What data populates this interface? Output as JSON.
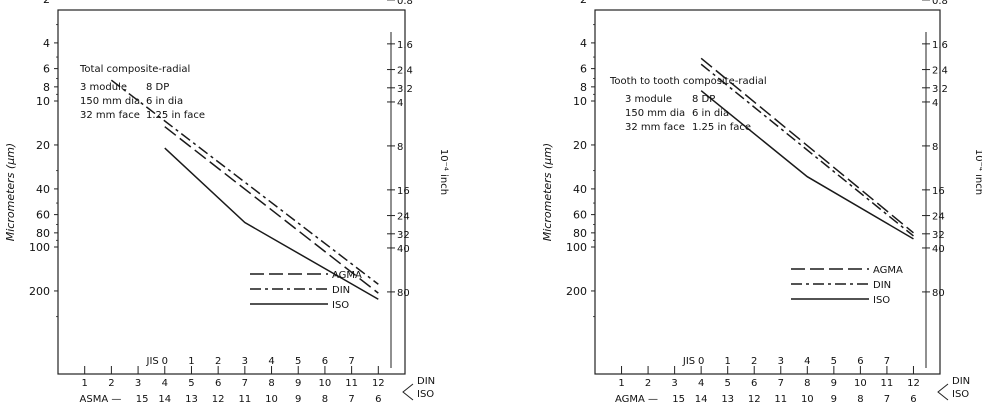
{
  "chart_data": [
    {
      "type": "line",
      "title": "Total composite-radial",
      "spec_lines": [
        {
          "metric": "3 module",
          "imperial": "8 DP"
        },
        {
          "metric": "150 mm dia",
          "imperial": "6 in dia"
        },
        {
          "metric": "32 mm face",
          "imperial": "1.25 in face"
        }
      ],
      "ylabel": "Micrometers (μm)",
      "y2label": "10⁻⁴ inch",
      "yscale": "log",
      "ylim": [
        1.55,
        300
      ],
      "yticks": [
        "2",
        "4",
        "6",
        "8",
        "10",
        "20",
        "40",
        "60",
        "80",
        "100",
        "200"
      ],
      "y2ticks": [
        "0.8",
        "1.6",
        "2.4",
        "3.2",
        "4",
        "8",
        "16",
        "24",
        "32",
        "40",
        "80"
      ],
      "x_rows": [
        {
          "name": "",
          "ticks": [
            "1",
            "2",
            "3",
            "4",
            "5",
            "6",
            "7",
            "8",
            "9",
            "10",
            "11",
            "12"
          ]
        },
        {
          "name": "JIS",
          "ticks": [
            "0",
            "1",
            "2",
            "3",
            "4",
            "5",
            "6",
            "7"
          ]
        },
        {
          "name": "ASMA —",
          "ticks": [
            "15",
            "14",
            "13",
            "12",
            "11",
            "10",
            "9",
            "8",
            "7",
            "6"
          ]
        }
      ],
      "x_row_labels_right": [
        "DIN",
        "ISO"
      ],
      "x": [
        1,
        2,
        3,
        4,
        5,
        6,
        7,
        8,
        9,
        10,
        11,
        12
      ],
      "series": [
        {
          "name": "AGMA",
          "style": "long-dash",
          "x": [
            4,
            12
          ],
          "y": [
            15,
            207
          ]
        },
        {
          "name": "DIN",
          "style": "dash-dot",
          "x": [
            2,
            12
          ],
          "y": [
            7.2,
            180
          ]
        },
        {
          "name": "ISO",
          "style": "solid",
          "x": [
            4,
            7,
            12
          ],
          "y": [
            21,
            68,
            228
          ]
        }
      ],
      "legend": [
        "AGMA",
        "DIN",
        "ISO"
      ]
    },
    {
      "type": "line",
      "title": "Tooth to tooth composite-radial",
      "spec_lines": [
        {
          "metric": "3 module",
          "imperial": "8 DP"
        },
        {
          "metric": "150 mm dia",
          "imperial": "6 in dia"
        },
        {
          "metric": "32 mm face",
          "imperial": "1.25 in face"
        }
      ],
      "ylabel": "Micrometers (μm)",
      "y2label": "10⁻⁴ inch",
      "yscale": "log",
      "ylim": [
        1.55,
        300
      ],
      "yticks": [
        "2",
        "4",
        "6",
        "8",
        "10",
        "20",
        "40",
        "60",
        "80",
        "100",
        "200"
      ],
      "y2ticks": [
        "0.8",
        "1.6",
        "2.4",
        "3.2",
        "4",
        "8",
        "16",
        "24",
        "32",
        "40",
        "80"
      ],
      "x_rows": [
        {
          "name": "",
          "ticks": [
            "1",
            "2",
            "3",
            "4",
            "5",
            "6",
            "7",
            "8",
            "9",
            "10",
            "11",
            "12"
          ]
        },
        {
          "name": "JIS",
          "ticks": [
            "0",
            "1",
            "2",
            "3",
            "4",
            "5",
            "6",
            "7"
          ]
        },
        {
          "name": "AGMA —",
          "ticks": [
            "15",
            "14",
            "13",
            "12",
            "11",
            "10",
            "9",
            "8",
            "7",
            "6"
          ]
        }
      ],
      "x_row_labels_right": [
        "DIN",
        "ISO"
      ],
      "x": [
        1,
        2,
        3,
        4,
        5,
        6,
        7,
        8,
        9,
        10,
        11,
        12
      ],
      "series": [
        {
          "name": "AGMA",
          "style": "long-dash",
          "x": [
            4,
            12
          ],
          "y": [
            5.1,
            80
          ]
        },
        {
          "name": "DIN",
          "style": "dash-dot",
          "x": [
            4,
            12
          ],
          "y": [
            5.6,
            84
          ]
        },
        {
          "name": "ISO",
          "style": "solid",
          "x": [
            4,
            8,
            12
          ],
          "y": [
            8.5,
            33,
            88
          ]
        }
      ],
      "legend": [
        "AGMA",
        "DIN",
        "ISO"
      ]
    }
  ]
}
